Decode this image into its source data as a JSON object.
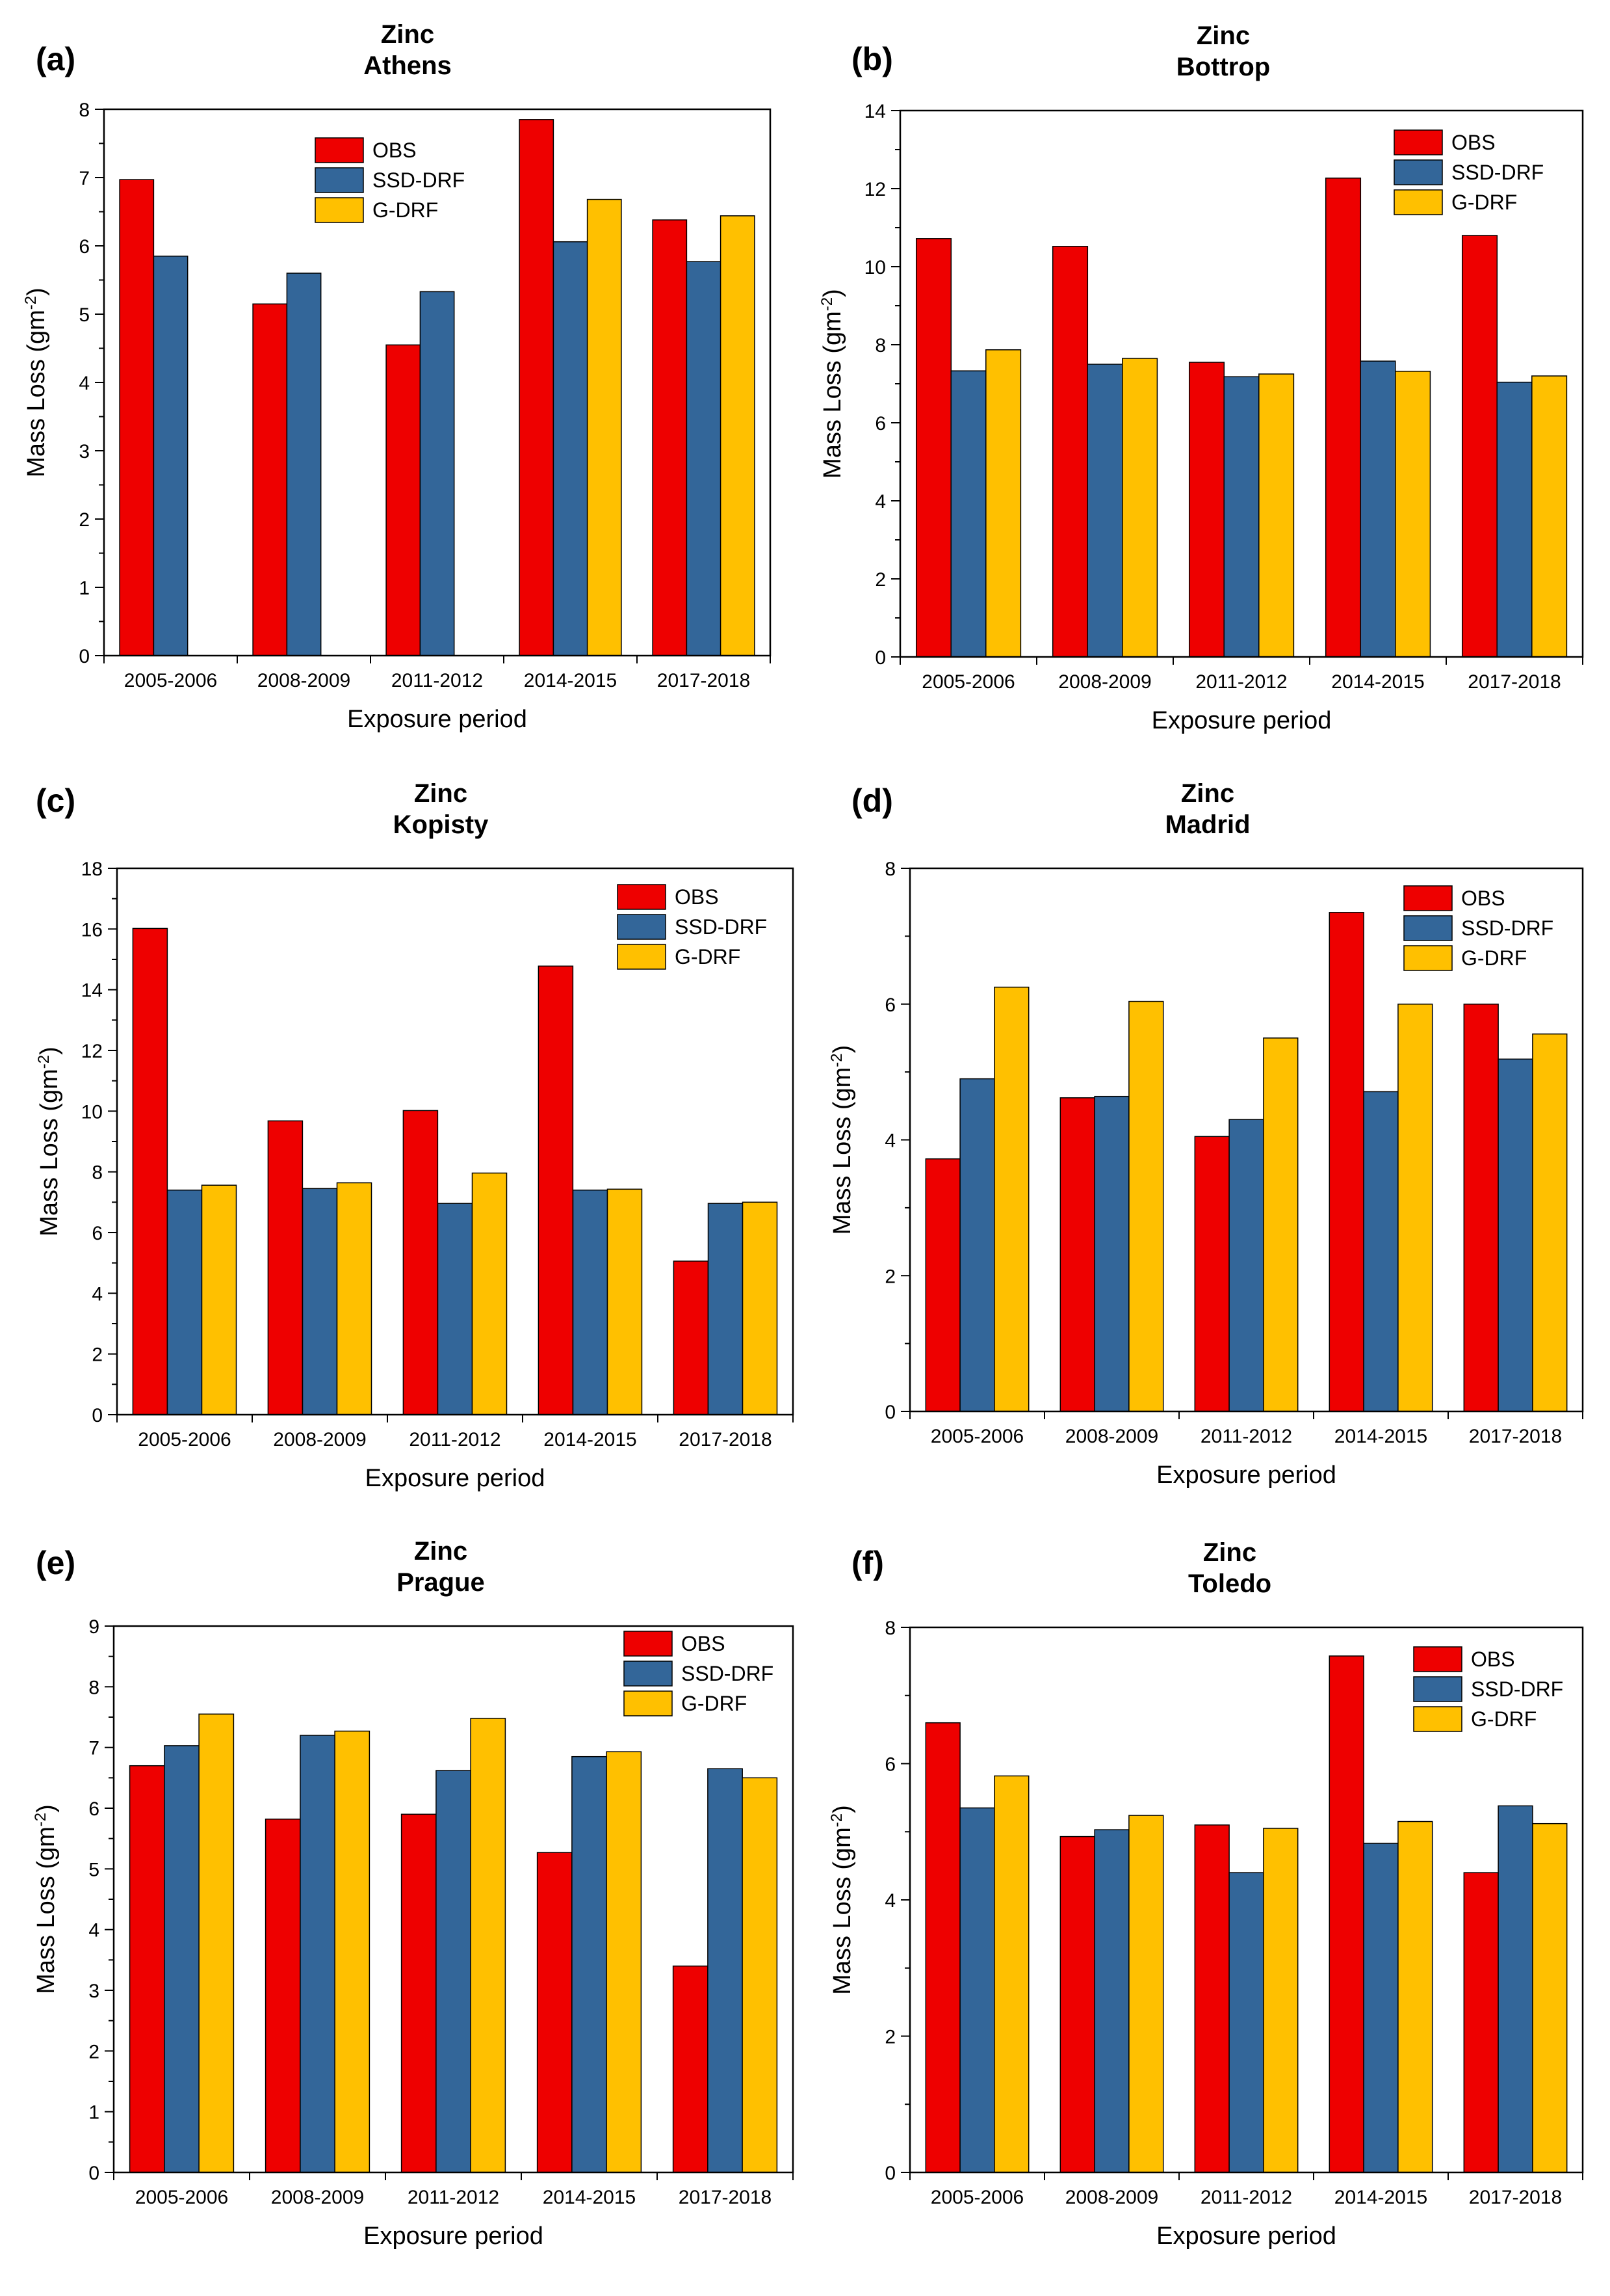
{
  "figure": {
    "series_names": [
      "OBS",
      "SSD-DRF",
      "G-DRF"
    ],
    "series_colors": [
      "#ee0000",
      "#336699",
      "#ffc000"
    ]
  },
  "chart_data": [
    {
      "type": "bar",
      "panel_label": "(a)",
      "title": "Zinc",
      "subtitle": "Athens",
      "xlabel": "Exposure period",
      "ylabel": "Mass Loss (gm",
      "ylabel_sup": "-2",
      "ylabel_close": ")",
      "categories": [
        "2005-2006",
        "2008-2009",
        "2011-2012",
        "2014-2015",
        "2017-2018"
      ],
      "ylim": [
        0,
        8
      ],
      "yticks": [
        0,
        1,
        2,
        3,
        4,
        5,
        6,
        7,
        8
      ],
      "legend": "top-center",
      "series": [
        {
          "name": "OBS",
          "values": [
            6.97,
            5.15,
            4.55,
            7.85,
            6.38
          ]
        },
        {
          "name": "SSD-DRF",
          "values": [
            5.85,
            5.6,
            5.33,
            6.06,
            5.77
          ]
        },
        {
          "name": "G-DRF",
          "values": [
            null,
            null,
            null,
            6.68,
            6.44
          ]
        }
      ]
    },
    {
      "type": "bar",
      "panel_label": "(b)",
      "title": "Zinc",
      "subtitle": "Bottrop",
      "xlabel": "Exposure period",
      "ylabel": "Mass Loss (gm",
      "ylabel_sup": "-2",
      "ylabel_close": ")",
      "categories": [
        "2005-2006",
        "2008-2009",
        "2011-2012",
        "2014-2015",
        "2017-2018"
      ],
      "ylim": [
        0,
        14
      ],
      "yticks": [
        0,
        2,
        4,
        6,
        8,
        10,
        12,
        14
      ],
      "legend": "top-right",
      "series": [
        {
          "name": "OBS",
          "values": [
            10.72,
            10.52,
            7.55,
            12.27,
            10.8
          ]
        },
        {
          "name": "SSD-DRF",
          "values": [
            7.33,
            7.5,
            7.18,
            7.58,
            7.04
          ]
        },
        {
          "name": "G-DRF",
          "values": [
            7.87,
            7.65,
            7.25,
            7.32,
            7.2
          ]
        }
      ]
    },
    {
      "type": "bar",
      "panel_label": "(c)",
      "title": "Zinc",
      "subtitle": "Kopisty",
      "xlabel": "Exposure period",
      "ylabel": "Mass Loss (gm",
      "ylabel_sup": "-2",
      "ylabel_close": ")",
      "categories": [
        "2005-2006",
        "2008-2009",
        "2011-2012",
        "2014-2015",
        "2017-2018"
      ],
      "ylim": [
        0,
        18
      ],
      "yticks": [
        0,
        2,
        4,
        6,
        8,
        10,
        12,
        14,
        16,
        18
      ],
      "legend": "top-right",
      "series": [
        {
          "name": "OBS",
          "values": [
            16.02,
            9.68,
            10.02,
            14.78,
            5.06
          ]
        },
        {
          "name": "SSD-DRF",
          "values": [
            7.4,
            7.45,
            6.96,
            7.4,
            6.96
          ]
        },
        {
          "name": "G-DRF",
          "values": [
            7.56,
            7.64,
            7.96,
            7.43,
            7.0
          ]
        }
      ]
    },
    {
      "type": "bar",
      "panel_label": "(d)",
      "title": "Zinc",
      "subtitle": "Madrid",
      "xlabel": "Exposure period",
      "ylabel": "Mass Loss (gm",
      "ylabel_sup": "-2",
      "ylabel_close": ")",
      "categories": [
        "2005-2006",
        "2008-2009",
        "2011-2012",
        "2014-2015",
        "2017-2018"
      ],
      "ylim": [
        0,
        8
      ],
      "yticks": [
        0,
        2,
        4,
        6,
        8
      ],
      "legend": "top-right",
      "series": [
        {
          "name": "OBS",
          "values": [
            3.72,
            4.62,
            4.05,
            7.35,
            6.0
          ]
        },
        {
          "name": "SSD-DRF",
          "values": [
            4.9,
            4.64,
            4.3,
            4.71,
            5.19
          ]
        },
        {
          "name": "G-DRF",
          "values": [
            6.25,
            6.04,
            5.5,
            6.0,
            5.56
          ]
        }
      ]
    },
    {
      "type": "bar",
      "panel_label": "(e)",
      "title": "Zinc",
      "subtitle": "Prague",
      "xlabel": "Exposure period",
      "ylabel": "Mass Loss (gm",
      "ylabel_sup": "-2",
      "ylabel_close": ")",
      "categories": [
        "2005-2006",
        "2008-2009",
        "2011-2012",
        "2014-2015",
        "2017-2018"
      ],
      "ylim": [
        0,
        9
      ],
      "yticks": [
        0,
        1,
        2,
        3,
        4,
        5,
        6,
        7,
        8,
        9
      ],
      "legend": "top-right",
      "series": [
        {
          "name": "OBS",
          "values": [
            6.7,
            5.82,
            5.9,
            5.27,
            3.4
          ]
        },
        {
          "name": "SSD-DRF",
          "values": [
            7.03,
            7.2,
            6.62,
            6.85,
            6.65
          ]
        },
        {
          "name": "G-DRF",
          "values": [
            7.55,
            7.27,
            7.48,
            6.93,
            6.5
          ]
        }
      ]
    },
    {
      "type": "bar",
      "panel_label": "(f)",
      "title": "Zinc",
      "subtitle": "Toledo",
      "xlabel": "Exposure period",
      "ylabel": "Mass Loss (gm",
      "ylabel_sup": "-2",
      "ylabel_close": ")",
      "categories": [
        "2005-2006",
        "2008-2009",
        "2011-2012",
        "2014-2015",
        "2017-2018"
      ],
      "ylim": [
        0,
        8
      ],
      "yticks": [
        0,
        2,
        4,
        6,
        8
      ],
      "legend": "top-right",
      "series": [
        {
          "name": "OBS",
          "values": [
            6.6,
            4.93,
            5.1,
            7.58,
            4.4
          ]
        },
        {
          "name": "SSD-DRF",
          "values": [
            5.35,
            5.03,
            4.4,
            4.83,
            5.38
          ]
        },
        {
          "name": "G-DRF",
          "values": [
            5.82,
            5.24,
            5.05,
            5.15,
            5.12
          ]
        }
      ]
    }
  ]
}
